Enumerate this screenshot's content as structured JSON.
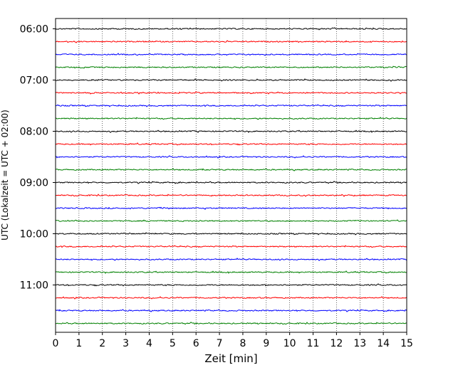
{
  "chart_data": {
    "type": "line",
    "title": "",
    "xlabel": "Zeit  [min]",
    "ylabel": "UTC (Lokalzeit = UTC + 02:00)",
    "xlim": [
      0,
      15
    ],
    "x_ticks": [
      "0",
      "1",
      "2",
      "3",
      "4",
      "5",
      "6",
      "7",
      "8",
      "9",
      "10",
      "11",
      "12",
      "13",
      "14",
      "15"
    ],
    "y_tick_labels": [
      "06:00",
      "07:00",
      "08:00",
      "09:00",
      "10:00",
      "11:00"
    ],
    "grid": "vertical dotted",
    "trace_start_time": "06:00",
    "trace_interval_min": 15,
    "trace_count": 24,
    "trace_colors": [
      "#000000",
      "#ff0000",
      "#0000ff",
      "#008000"
    ]
  }
}
